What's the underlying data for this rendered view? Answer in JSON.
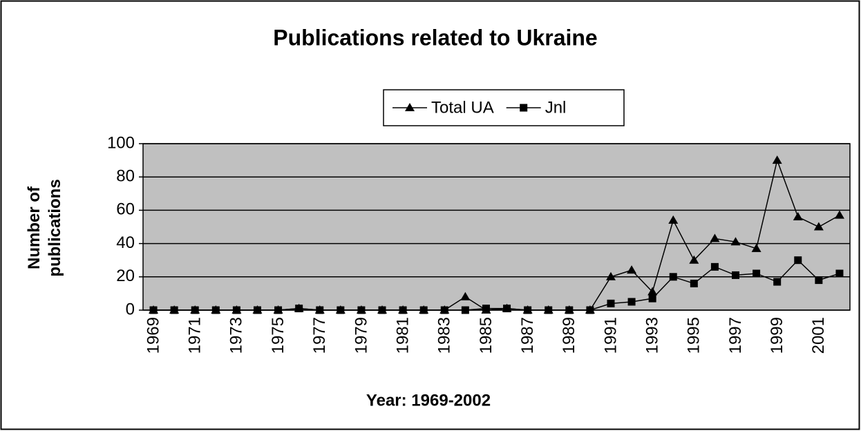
{
  "chart_data": {
    "type": "line",
    "title": "Publications related to Ukraine",
    "xlabel": "Year: 1969-2002",
    "ylabel": "Number of publications",
    "categories": [
      "1969",
      null,
      "1971",
      null,
      "1973",
      null,
      "1975",
      null,
      "1977",
      null,
      "1979",
      null,
      "1981",
      null,
      "1983",
      null,
      "1985",
      null,
      "1987",
      null,
      "1989",
      null,
      "1991",
      null,
      "1993",
      null,
      "1995",
      null,
      "1997",
      null,
      "1999",
      null,
      "2001",
      null
    ],
    "series": [
      {
        "name": "Total UA",
        "color": "#000000",
        "marker": "triangle",
        "values": [
          0,
          0,
          0,
          0,
          0,
          0,
          0,
          1,
          0,
          0,
          0,
          0,
          0,
          0,
          0,
          8,
          0,
          1,
          0,
          0,
          0,
          0,
          20,
          24,
          11,
          54,
          30,
          43,
          41,
          37,
          90,
          56,
          50,
          57
        ]
      },
      {
        "name": "Jnl",
        "color": "#000000",
        "marker": "square",
        "values": [
          0,
          0,
          0,
          0,
          0,
          0,
          0,
          1,
          0,
          0,
          0,
          0,
          0,
          0,
          0,
          0,
          1,
          1,
          0,
          0,
          0,
          0,
          4,
          5,
          7,
          20,
          16,
          26,
          21,
          22,
          17,
          30,
          18,
          22
        ]
      }
    ],
    "ylim": [
      0,
      100
    ],
    "yticks": [
      0,
      20,
      40,
      60,
      80,
      100
    ],
    "grid": true,
    "legend": "top",
    "plot_background": "#c0c0c0"
  }
}
